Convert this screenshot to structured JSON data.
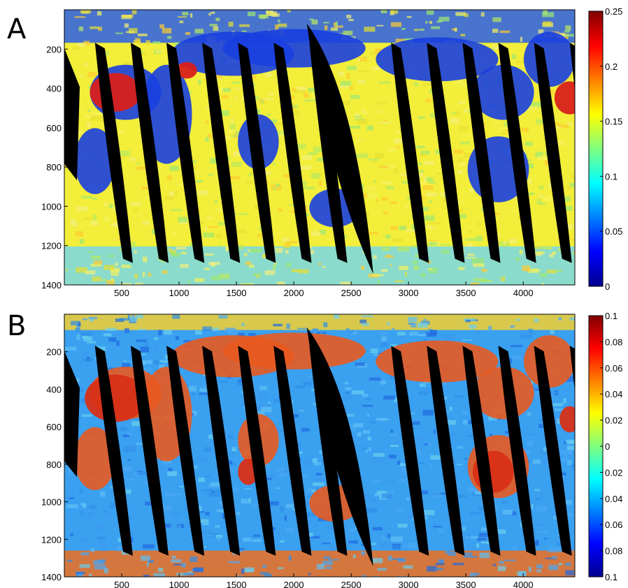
{
  "chart_data": [
    {
      "type": "heatmap",
      "panel_label": "A",
      "title": "",
      "xlabel": "",
      "ylabel": "",
      "xlim": [
        0,
        4450
      ],
      "ylim": [
        1400,
        0
      ],
      "x_ticks": [
        "500",
        "1000",
        "1500",
        "2000",
        "2500",
        "3000",
        "3500",
        "4000"
      ],
      "y_ticks": [
        "200",
        "400",
        "600",
        "800",
        "1000",
        "1200",
        "1400"
      ],
      "colorbar": {
        "colormap": "jet",
        "range": [
          0,
          0.25
        ],
        "ticks": [
          "0.25",
          "0.2",
          "0.15",
          "0.1",
          "0.05",
          "0"
        ]
      },
      "colors": {
        "dominant": "#f2ee3a",
        "land_low": "#1a3fe0",
        "high": "#d9201a",
        "no_data": "#000000"
      }
    },
    {
      "type": "heatmap",
      "panel_label": "B",
      "title": "",
      "xlabel": "",
      "ylabel": "",
      "xlim": [
        0,
        4450
      ],
      "ylim": [
        1400,
        0
      ],
      "x_ticks": [
        "500",
        "1000",
        "1500",
        "2000",
        "2500",
        "3000",
        "3500",
        "4000"
      ],
      "y_ticks": [
        "200",
        "400",
        "600",
        "800",
        "1000",
        "1200",
        "1400"
      ],
      "colorbar": {
        "colormap": "jet",
        "range": [
          -0.1,
          0.1
        ],
        "ticks": [
          "0.1",
          "0.08",
          "0.06",
          "0.04",
          "0.02",
          "0",
          "0.02",
          "0.04",
          "0.06",
          "0.08",
          "0.1"
        ]
      },
      "colors": {
        "dominant": "#3aa0f0",
        "land_high": "#e85a20",
        "no_data": "#000000"
      }
    }
  ]
}
